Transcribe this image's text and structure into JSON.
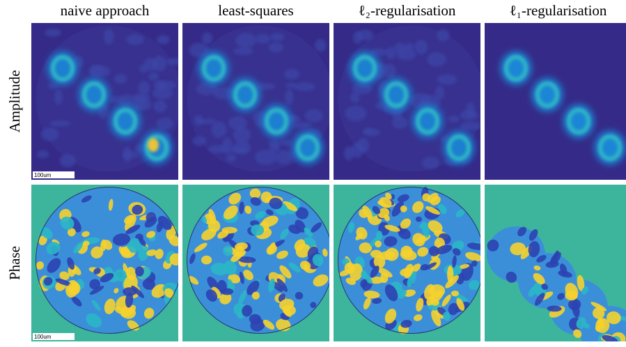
{
  "columns": [
    "naive approach",
    "least-squares",
    "ℓ₂-regularisation",
    "ℓ₁-regularisation"
  ],
  "rows": [
    "Amplitude",
    "Phase"
  ],
  "scale_bar": {
    "label": "100um"
  }
}
